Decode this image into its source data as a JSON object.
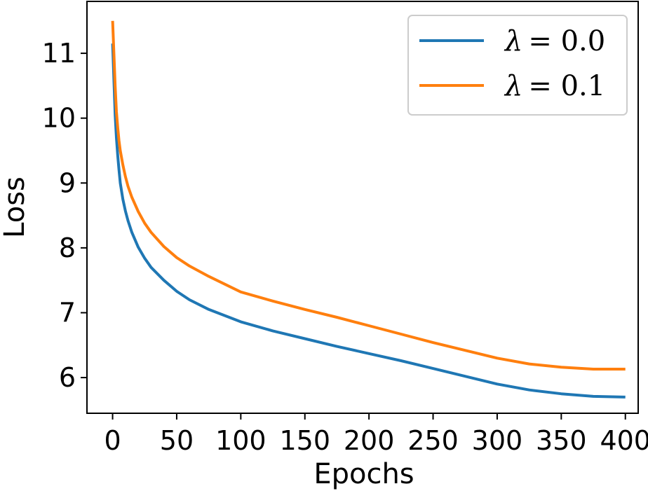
{
  "chart_data": {
    "type": "line",
    "xlabel": "Epochs",
    "ylabel": "Loss",
    "xlim": [
      -20,
      410
    ],
    "ylim": [
      5.45,
      11.8
    ],
    "xticks": [
      0,
      50,
      100,
      150,
      200,
      250,
      300,
      350,
      400
    ],
    "yticks": [
      6,
      7,
      8,
      9,
      10,
      11
    ],
    "grid": false,
    "legend_position": "top-right",
    "series": [
      {
        "name_symbol": "λ",
        "name_value": "= 0.0",
        "color": "#1f77b4",
        "x": [
          0,
          1,
          2,
          3,
          4,
          5,
          6,
          8,
          10,
          12,
          15,
          20,
          25,
          30,
          40,
          50,
          60,
          75,
          100,
          125,
          150,
          175,
          200,
          225,
          250,
          275,
          300,
          325,
          350,
          375,
          400
        ],
        "values": [
          11.15,
          10.6,
          10.05,
          9.7,
          9.42,
          9.2,
          9.0,
          8.75,
          8.57,
          8.42,
          8.24,
          8.01,
          7.84,
          7.7,
          7.5,
          7.33,
          7.2,
          7.05,
          6.86,
          6.72,
          6.6,
          6.48,
          6.37,
          6.26,
          6.14,
          6.02,
          5.9,
          5.81,
          5.75,
          5.71,
          5.7
        ]
      },
      {
        "name_symbol": "λ",
        "name_value": "= 0.1",
        "color": "#ff7f0e",
        "x": [
          0,
          1,
          2,
          3,
          4,
          5,
          6,
          8,
          10,
          12,
          15,
          20,
          25,
          30,
          40,
          50,
          60,
          75,
          100,
          125,
          150,
          175,
          200,
          225,
          250,
          275,
          300,
          325,
          350,
          375,
          400
        ],
        "values": [
          11.5,
          11.0,
          10.5,
          10.1,
          9.85,
          9.65,
          9.5,
          9.28,
          9.1,
          8.95,
          8.78,
          8.56,
          8.38,
          8.24,
          8.02,
          7.85,
          7.72,
          7.56,
          7.32,
          7.18,
          7.05,
          6.93,
          6.8,
          6.67,
          6.54,
          6.42,
          6.3,
          6.21,
          6.16,
          6.13,
          6.13
        ]
      }
    ]
  }
}
